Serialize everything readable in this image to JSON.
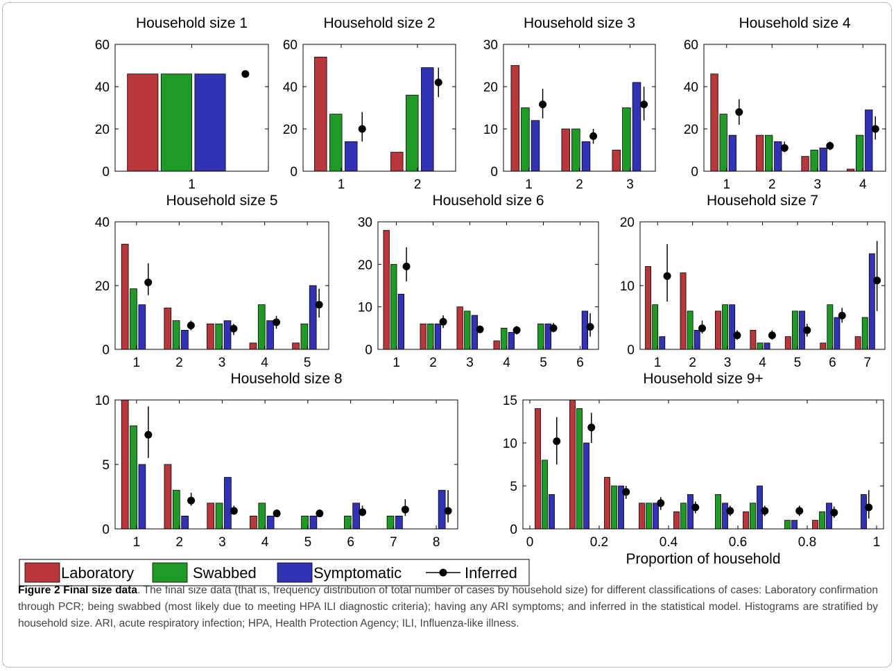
{
  "colors": {
    "Laboratory": "#b8373b",
    "Swabbed": "#1f9a26",
    "Symptomatic": "#3232b5",
    "Inferred": "#000000"
  },
  "legend": [
    "Laboratory",
    "Swabbed",
    "Symptomatic",
    "Inferred"
  ],
  "caption": {
    "title": "Figure 2 Final size data",
    "text": ". The final size data (that is, frequency distribution of total number of cases by household size) for different classifications of cases: Laboratory confirmation through PCR; being swabbed (most likely due to meeting HPA ILI diagnostic criteria); having any ARI symptoms; and inferred in the statistical model. Histograms are stratified by household size. ARI, acute respiratory infection; HPA, Health Protection Agency; ILI, Influenza-like illness."
  },
  "chart_data": [
    {
      "type": "bar",
      "title": "Household size 1",
      "xlabel": "",
      "ylabel": "",
      "categories": [
        "1"
      ],
      "xlim": [
        0.5,
        1.5
      ],
      "ylim": [
        0,
        60
      ],
      "yticks": [
        0,
        20,
        40,
        60
      ],
      "series": [
        {
          "name": "Laboratory",
          "values": [
            46
          ]
        },
        {
          "name": "Swabbed",
          "values": [
            46
          ]
        },
        {
          "name": "Symptomatic",
          "values": [
            46
          ]
        }
      ],
      "inferred": {
        "name": "Inferred",
        "values": [
          46
        ],
        "lower": [
          46
        ],
        "upper": [
          46
        ]
      }
    },
    {
      "type": "bar",
      "title": "Household size 2",
      "xlabel": "",
      "ylabel": "",
      "categories": [
        "1",
        "2"
      ],
      "xlim": [
        0.5,
        2.5
      ],
      "ylim": [
        0,
        60
      ],
      "yticks": [
        0,
        20,
        40,
        60
      ],
      "series": [
        {
          "name": "Laboratory",
          "values": [
            54,
            9
          ]
        },
        {
          "name": "Swabbed",
          "values": [
            27,
            36
          ]
        },
        {
          "name": "Symptomatic",
          "values": [
            14,
            49
          ]
        }
      ],
      "inferred": {
        "name": "Inferred",
        "values": [
          20,
          42
        ],
        "lower": [
          14,
          35
        ],
        "upper": [
          28,
          49
        ]
      }
    },
    {
      "type": "bar",
      "title": "Household size 3",
      "xlabel": "",
      "ylabel": "",
      "categories": [
        "1",
        "2",
        "3"
      ],
      "xlim": [
        0.5,
        3.5
      ],
      "ylim": [
        0,
        30
      ],
      "yticks": [
        0,
        10,
        20,
        30
      ],
      "series": [
        {
          "name": "Laboratory",
          "values": [
            25,
            10,
            5
          ]
        },
        {
          "name": "Swabbed",
          "values": [
            15,
            10,
            15
          ]
        },
        {
          "name": "Symptomatic",
          "values": [
            12,
            7,
            21
          ]
        }
      ],
      "inferred": {
        "name": "Inferred",
        "values": [
          15.8,
          8.3,
          15.8
        ],
        "lower": [
          12.5,
          6.5,
          12
        ],
        "upper": [
          19.5,
          10,
          20
        ]
      }
    },
    {
      "type": "bar",
      "title": "Household size 4",
      "xlabel": "",
      "ylabel": "",
      "categories": [
        "1",
        "2",
        "3",
        "4"
      ],
      "xlim": [
        0.5,
        4.5
      ],
      "ylim": [
        0,
        60
      ],
      "yticks": [
        0,
        20,
        40,
        60
      ],
      "series": [
        {
          "name": "Laboratory",
          "values": [
            46,
            17,
            7,
            1
          ]
        },
        {
          "name": "Swabbed",
          "values": [
            27,
            17,
            10,
            17
          ]
        },
        {
          "name": "Symptomatic",
          "values": [
            17,
            14,
            11,
            29
          ]
        }
      ],
      "inferred": {
        "name": "Inferred",
        "values": [
          28,
          11,
          12,
          20
        ],
        "lower": [
          22,
          9,
          10,
          15
        ],
        "upper": [
          34,
          14,
          14,
          26
        ]
      }
    },
    {
      "type": "bar",
      "title": "Household size 5",
      "xlabel": "",
      "ylabel": "",
      "categories": [
        "1",
        "2",
        "3",
        "4",
        "5"
      ],
      "xlim": [
        0.5,
        5.5
      ],
      "ylim": [
        0,
        40
      ],
      "yticks": [
        0,
        20,
        40
      ],
      "series": [
        {
          "name": "Laboratory",
          "values": [
            33,
            13,
            8,
            2,
            2
          ]
        },
        {
          "name": "Swabbed",
          "values": [
            19,
            9,
            8,
            14,
            8
          ]
        },
        {
          "name": "Symptomatic",
          "values": [
            14,
            6,
            9,
            9,
            20
          ]
        }
      ],
      "inferred": {
        "name": "Inferred",
        "values": [
          21,
          7.5,
          6.5,
          8.5,
          14
        ],
        "lower": [
          17,
          6,
          4.5,
          6.5,
          10
        ],
        "upper": [
          27,
          9,
          8,
          10.5,
          19
        ]
      }
    },
    {
      "type": "bar",
      "title": "Household size 6",
      "xlabel": "",
      "ylabel": "",
      "categories": [
        "1",
        "2",
        "3",
        "4",
        "5",
        "6"
      ],
      "xlim": [
        0.5,
        6.5
      ],
      "ylim": [
        0,
        30
      ],
      "yticks": [
        0,
        10,
        20,
        30
      ],
      "series": [
        {
          "name": "Laboratory",
          "values": [
            28,
            6,
            10,
            2,
            0,
            0
          ]
        },
        {
          "name": "Swabbed",
          "values": [
            20,
            6,
            9,
            5,
            6,
            0
          ]
        },
        {
          "name": "Symptomatic",
          "values": [
            13,
            6,
            8,
            4,
            6,
            9
          ]
        }
      ],
      "inferred": {
        "name": "Inferred",
        "values": [
          19.5,
          6.5,
          4.7,
          4.5,
          5,
          5.3
        ],
        "lower": [
          16,
          5,
          3.8,
          3.5,
          4,
          3
        ],
        "upper": [
          24,
          8,
          5.6,
          5.5,
          6.2,
          8.5
        ]
      }
    },
    {
      "type": "bar",
      "title": "Household size 7",
      "xlabel": "",
      "ylabel": "",
      "categories": [
        "1",
        "2",
        "3",
        "4",
        "5",
        "6",
        "7"
      ],
      "xlim": [
        0.5,
        7.5
      ],
      "ylim": [
        0,
        20
      ],
      "yticks": [
        0,
        10,
        20
      ],
      "series": [
        {
          "name": "Laboratory",
          "values": [
            13,
            12,
            6,
            3,
            2,
            1,
            2
          ]
        },
        {
          "name": "Swabbed",
          "values": [
            7,
            6,
            7,
            1,
            6,
            7,
            5
          ]
        },
        {
          "name": "Symptomatic",
          "values": [
            2,
            3,
            7,
            1,
            6,
            5,
            15
          ]
        }
      ],
      "inferred": {
        "name": "Inferred",
        "values": [
          11.5,
          3.3,
          2.2,
          2.2,
          3,
          5.3,
          10.8
        ],
        "lower": [
          7.5,
          2.5,
          1.5,
          1.5,
          2,
          4.2,
          6
        ],
        "upper": [
          16.5,
          4.5,
          3,
          3,
          4,
          6.5,
          17
        ]
      }
    },
    {
      "type": "bar",
      "title": "Household size 8",
      "xlabel": "",
      "ylabel": "",
      "categories": [
        "1",
        "2",
        "3",
        "4",
        "5",
        "6",
        "7",
        "8"
      ],
      "xlim": [
        0.5,
        8.5
      ],
      "ylim": [
        0,
        10
      ],
      "yticks": [
        0,
        5,
        10
      ],
      "series": [
        {
          "name": "Laboratory",
          "values": [
            10,
            5,
            2,
            1,
            0,
            0,
            0,
            0
          ]
        },
        {
          "name": "Swabbed",
          "values": [
            8,
            3,
            2,
            2,
            1,
            1,
            1,
            0
          ]
        },
        {
          "name": "Symptomatic",
          "values": [
            5,
            1,
            4,
            1,
            1,
            2,
            1,
            3
          ]
        }
      ],
      "inferred": {
        "name": "Inferred",
        "values": [
          7.3,
          2.2,
          1.4,
          1.2,
          1.2,
          1.3,
          1.5,
          1.4
        ],
        "lower": [
          5.5,
          1.8,
          1.1,
          1,
          1,
          1,
          1,
          0.5
        ],
        "upper": [
          9.5,
          2.8,
          1.8,
          1.5,
          1.5,
          1.8,
          2.3,
          3
        ]
      }
    },
    {
      "type": "bar",
      "title": "Household size 9+",
      "xlabel": "Proportion of household",
      "ylabel": "",
      "categories": [
        "0.05",
        "0.15",
        "0.25",
        "0.35",
        "0.45",
        "0.55",
        "0.65",
        "0.75",
        "0.85",
        "0.95"
      ],
      "xcenters": [
        0.05,
        0.15,
        0.25,
        0.35,
        0.45,
        0.55,
        0.65,
        0.75,
        0.85,
        0.95
      ],
      "xlim": [
        -0.02,
        1.02
      ],
      "xticks": [
        "0",
        "0.2",
        "0.4",
        "0.6",
        "0.8",
        "1"
      ],
      "xtickvals": [
        0,
        0.2,
        0.4,
        0.6,
        0.8,
        1
      ],
      "ylim": [
        0,
        15
      ],
      "yticks": [
        0,
        5,
        10,
        15
      ],
      "series": [
        {
          "name": "Laboratory",
          "values": [
            14,
            15,
            6,
            3,
            2,
            0,
            2,
            0,
            1,
            0
          ]
        },
        {
          "name": "Swabbed",
          "values": [
            8,
            14,
            5,
            3,
            3,
            4,
            3,
            1,
            2,
            0
          ]
        },
        {
          "name": "Symptomatic",
          "values": [
            4,
            10,
            5,
            3,
            4,
            3,
            5,
            1,
            3,
            4
          ]
        }
      ],
      "inferred": {
        "name": "Inferred",
        "values": [
          10.2,
          11.8,
          4.3,
          3,
          2.5,
          2.1,
          2.1,
          2.1,
          1.9,
          2.5
        ],
        "lower": [
          7.5,
          10,
          3.5,
          2.2,
          1.8,
          1.5,
          1.5,
          1.5,
          1.3,
          1.2
        ],
        "upper": [
          13,
          13.5,
          5,
          3.7,
          3.2,
          2.7,
          2.7,
          2.7,
          2.6,
          4.5
        ]
      }
    }
  ]
}
